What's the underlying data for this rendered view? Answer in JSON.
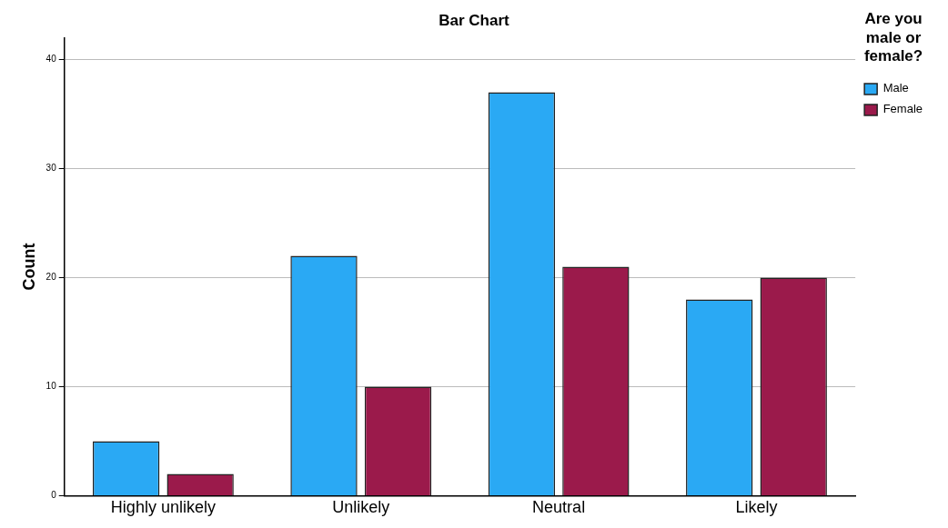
{
  "chart_data": {
    "type": "bar",
    "title": "Bar Chart",
    "ylabel": "Count",
    "legend_title": "Are you male or female?",
    "categories": [
      "Highly unlikely",
      "Unlikely",
      "Neutral",
      "Likely"
    ],
    "series": [
      {
        "name": "Male",
        "color": "#2aa9f4",
        "values": [
          5,
          22,
          37,
          18
        ]
      },
      {
        "name": "Female",
        "color": "#9b1a4b",
        "values": [
          2,
          10,
          21,
          20
        ]
      }
    ],
    "ylim": [
      0,
      42
    ],
    "yticks": [
      0,
      10,
      20,
      30,
      40
    ],
    "grid": "y",
    "legend": "top right"
  }
}
